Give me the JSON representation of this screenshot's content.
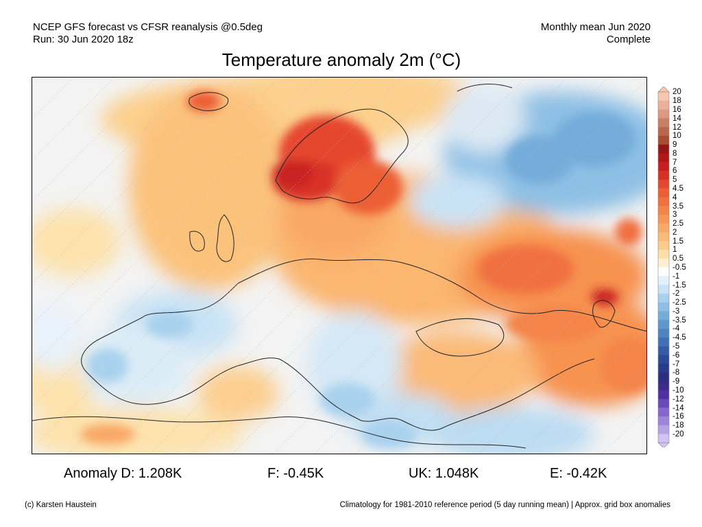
{
  "header": {
    "line1_left": "NCEP GFS forecast vs CFSR reanalysis @0.5deg",
    "line2_left": "Run: 30 Jun 2020 18z",
    "line1_right": "Monthly mean Jun 2020",
    "line2_right": "Complete"
  },
  "title": "Temperature anomaly 2m (°C)",
  "colorbar": {
    "labels": [
      "20",
      "18",
      "16",
      "14",
      "12",
      "10",
      "9",
      "8",
      "7",
      "6",
      "5",
      "4.5",
      "4",
      "3.5",
      "3",
      "2.5",
      "2",
      "1.5",
      "1",
      "0.5",
      "-0.5",
      "-1",
      "-1.5",
      "-2",
      "-2.5",
      "-3",
      "-3.5",
      "-4",
      "-4.5",
      "-5",
      "-6",
      "-7",
      "-8",
      "-9",
      "-10",
      "-12",
      "-14",
      "-16",
      "-18",
      "-20"
    ],
    "colors": [
      "#f5c6b0",
      "#eab09a",
      "#dc9a82",
      "#c97f65",
      "#b8664c",
      "#a84d33",
      "#961515",
      "#b01818",
      "#c82020",
      "#d83025",
      "#e5472e",
      "#ec5e36",
      "#f07040",
      "#f48448",
      "#f79656",
      "#f9a865",
      "#fbba77",
      "#fccd8a",
      "#fde0a6",
      "#fff0d2",
      "#ffffff",
      "#e3f0fa",
      "#c9e3f5",
      "#a9d1ee",
      "#8ec0e5",
      "#75acd9",
      "#5f98cd",
      "#4e84c0",
      "#4270b4",
      "#375ca6",
      "#2e4898",
      "#2a3a8c",
      "#2c2e80",
      "#3a2a8a",
      "#5030a0",
      "#6a48b8",
      "#8466cc",
      "#9c84da",
      "#b6a2e6",
      "#d0c2f2"
    ]
  },
  "stats": {
    "germany": "Anomaly D: 1.208K",
    "france": "F: -0.45K",
    "uk": "UK: 1.048K",
    "spain": "E: -0.42K"
  },
  "footer": {
    "copyright": "(c) Karsten Haustein",
    "note": "Climatology for 1981-2010 reference period (5 day running mean) | Approx. grid box anomalies"
  }
}
